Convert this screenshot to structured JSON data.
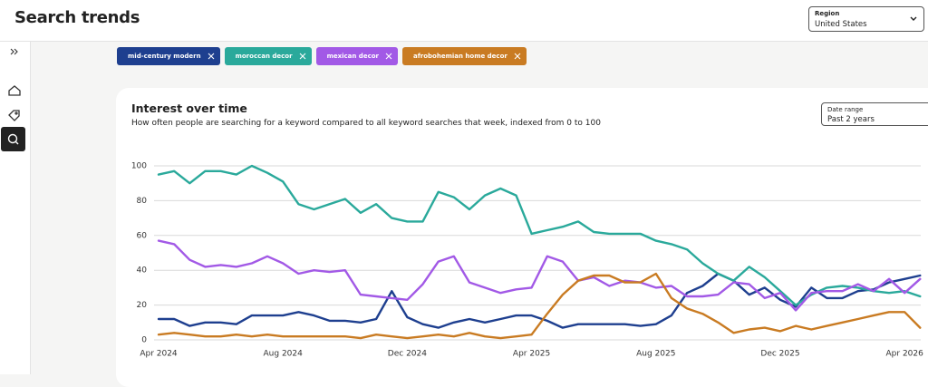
{
  "header": {
    "title": "Search trends"
  },
  "region": {
    "label": "Region",
    "value": "United States"
  },
  "date_range": {
    "label": "Date range",
    "value": "Past 2 years"
  },
  "chart_data": {
    "type": "line",
    "title": "Interest over time",
    "subtitle": "How often people are searching for a keyword compared to all keyword searches that week, indexed from 0 to 100",
    "categories": [
      "Apr 2024",
      null,
      null,
      null,
      null,
      null,
      null,
      null,
      "Aug 2024",
      null,
      null,
      null,
      null,
      null,
      null,
      null,
      "Dec 2024",
      null,
      null,
      null,
      null,
      null,
      null,
      null,
      "Apr 2025",
      null,
      null,
      null,
      null,
      null,
      null,
      null,
      "Aug 2025",
      null,
      null,
      null,
      null,
      null,
      null,
      null,
      "Dec 2025",
      null,
      null,
      null,
      null,
      null,
      null,
      null,
      "Apr 2026",
      null
    ],
    "series": [
      {
        "name": "mid-century modern",
        "color": "#1e3f8f",
        "values": [
          12,
          12,
          8,
          10,
          10,
          9,
          14,
          14,
          14,
          16,
          14,
          11,
          11,
          10,
          12,
          28,
          13,
          9,
          7,
          10,
          12,
          10,
          12,
          14,
          14,
          11,
          7,
          9,
          9,
          9,
          9,
          8,
          9,
          14,
          27,
          31,
          38,
          34,
          26,
          30,
          23,
          19,
          30,
          24,
          24,
          28,
          29,
          33,
          35,
          37
        ]
      },
      {
        "name": "moroccan decor",
        "color": "#2aa99b",
        "values": [
          95,
          97,
          90,
          97,
          97,
          95,
          100,
          96,
          91,
          78,
          75,
          78,
          81,
          73,
          78,
          70,
          68,
          68,
          85,
          82,
          75,
          83,
          87,
          83,
          61,
          63,
          65,
          68,
          62,
          61,
          61,
          61,
          57,
          55,
          52,
          44,
          38,
          34,
          42,
          36,
          28,
          20,
          26,
          30,
          31,
          30,
          28,
          27,
          28,
          25
        ]
      },
      {
        "name": "mexican decor",
        "color": "#a259e6",
        "values": [
          57,
          55,
          46,
          42,
          43,
          42,
          44,
          48,
          44,
          38,
          40,
          39,
          40,
          26,
          25,
          24,
          23,
          32,
          45,
          48,
          33,
          30,
          27,
          29,
          30,
          48,
          45,
          34,
          36,
          31,
          34,
          33,
          30,
          31,
          25,
          25,
          26,
          33,
          32,
          24,
          27,
          17,
          27,
          28,
          28,
          32,
          28,
          35,
          27,
          35
        ]
      },
      {
        "name": "afrobohemian home decor",
        "color": "#c97b22",
        "values": [
          3,
          4,
          3,
          2,
          2,
          3,
          2,
          3,
          2,
          2,
          2,
          2,
          2,
          1,
          3,
          2,
          1,
          2,
          3,
          2,
          4,
          2,
          1,
          2,
          3,
          15,
          26,
          34,
          37,
          37,
          33,
          33,
          38,
          24,
          18,
          15,
          10,
          4,
          6,
          7,
          5,
          8,
          6,
          8,
          10,
          12,
          14,
          16,
          16,
          7
        ]
      }
    ],
    "ylim": [
      0,
      100
    ],
    "yticks": [
      0,
      20,
      40,
      60,
      80,
      100
    ],
    "grid": true
  }
}
